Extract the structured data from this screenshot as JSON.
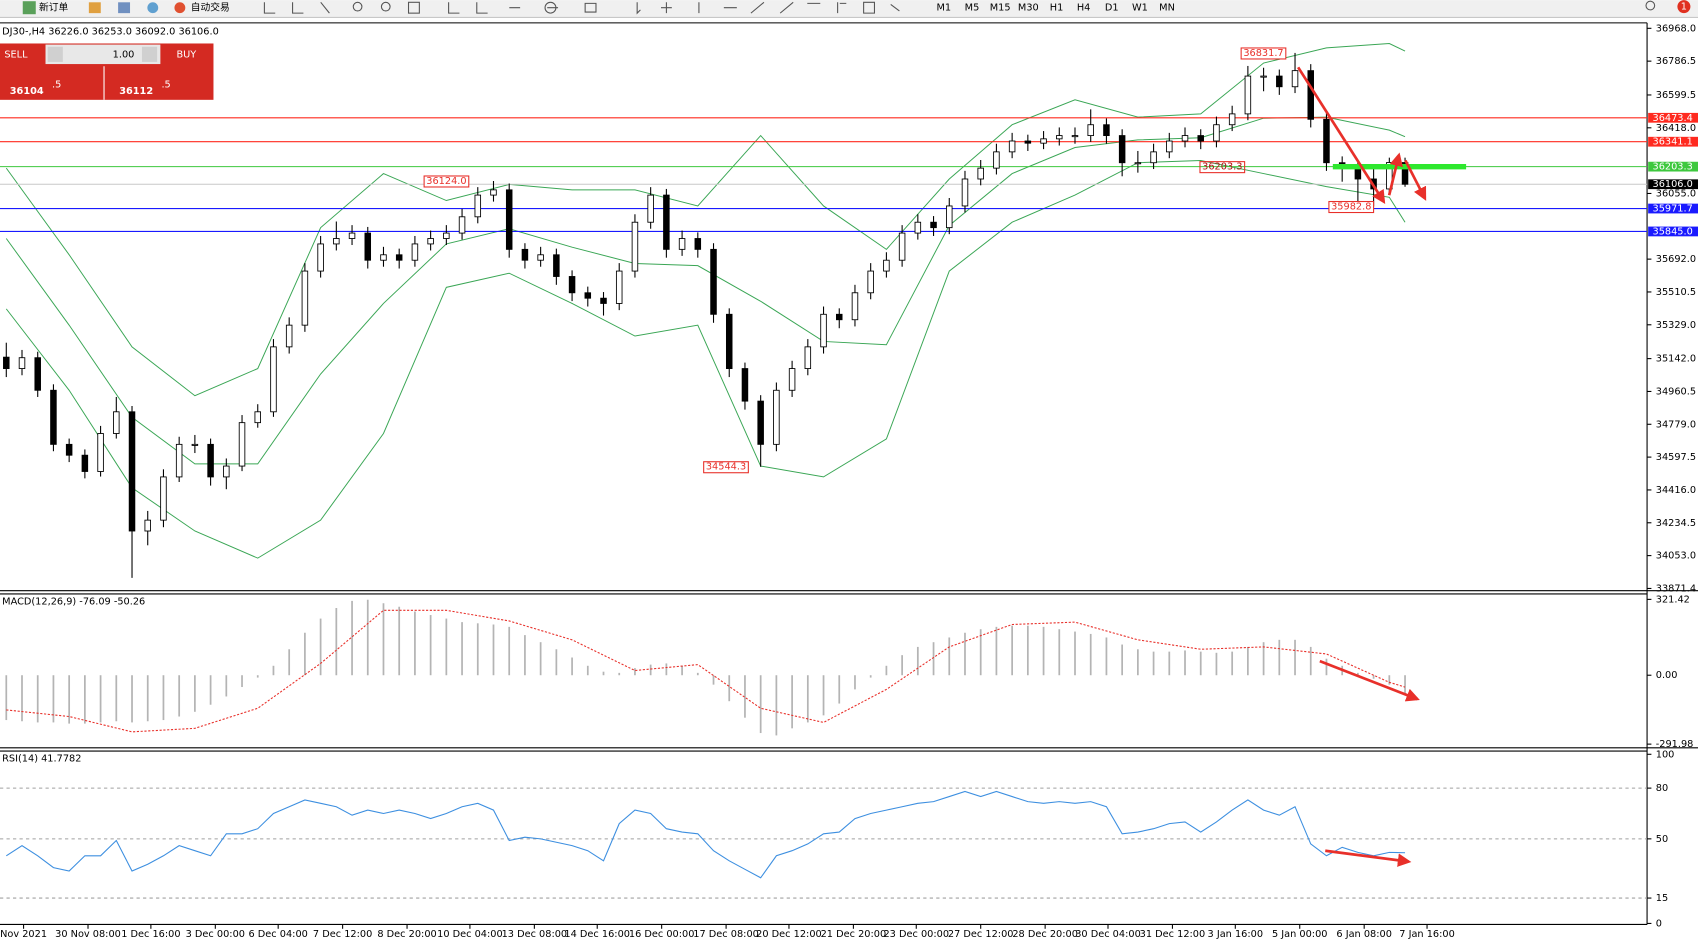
{
  "toolbar": {
    "new_order": "新订单",
    "auto_trading": "自动交易",
    "timeframes": [
      "M1",
      "M5",
      "M15",
      "M30",
      "H1",
      "H4",
      "D1",
      "W1",
      "MN"
    ],
    "notification_count": 1
  },
  "trade_panel": {
    "sell": "SELL",
    "buy": "BUY",
    "volume": "1.00",
    "bid_main": "36104",
    "bid_pips": ".5",
    "ask_main": "36112",
    "ask_pips": ".5"
  },
  "chart_data": [
    {
      "type": "candlestick",
      "title": "DJ30-,H4  36226.0 36253.0 36092.0 36106.0",
      "xlim": [
        -0.4,
        104.4
      ],
      "xticks": [
        {
          "value": 1.1,
          "label": "Nov 2021"
        },
        {
          "value": 5.2,
          "label": "30 Nov 08:00"
        },
        {
          "value": 9.2,
          "label": "1 Dec 16:00"
        },
        {
          "value": 13.3,
          "label": "3 Dec 00:00"
        },
        {
          "value": 17.3,
          "label": "6 Dec 04:00"
        },
        {
          "value": 21.4,
          "label": "7 Dec 12:00"
        },
        {
          "value": 25.5,
          "label": "8 Dec 20:00"
        },
        {
          "value": 29.5,
          "label": "10 Dec 04:00"
        },
        {
          "value": 33.6,
          "label": "13 Dec 08:00"
        },
        {
          "value": 37.6,
          "label": "14 Dec 16:00"
        },
        {
          "value": 41.7,
          "label": "16 Dec 00:00"
        },
        {
          "value": 45.8,
          "label": "17 Dec 08:00"
        },
        {
          "value": 49.8,
          "label": "20 Dec 12:00"
        },
        {
          "value": 53.9,
          "label": "21 Dec 20:00"
        },
        {
          "value": 57.9,
          "label": "23 Dec 00:00"
        },
        {
          "value": 62.0,
          "label": "27 Dec 12:00"
        },
        {
          "value": 66.1,
          "label": "28 Dec 20:00"
        },
        {
          "value": 70.1,
          "label": "30 Dec 04:00"
        },
        {
          "value": 74.2,
          "label": "31 Dec 12:00"
        },
        {
          "value": 78.2,
          "label": "3 Jan 16:00"
        },
        {
          "value": 82.3,
          "label": "5 Jan 00:00"
        },
        {
          "value": 86.4,
          "label": "6 Jan 08:00"
        },
        {
          "value": 90.4,
          "label": "7 Jan 16:00"
        }
      ],
      "ylim": [
        33859,
        36992
      ],
      "yticks": [
        {
          "value": 36968,
          "label": "36968.0"
        },
        36786.5,
        36599.5,
        {
          "value": 36418,
          "label": "36418.0"
        },
        {
          "value": 36055,
          "label": "36055.0"
        },
        {
          "value": 35692,
          "label": "35692.0"
        },
        35510.5,
        {
          "value": 35329,
          "label": "35329.0"
        },
        {
          "value": 35142,
          "label": "35142.0"
        },
        34960.5,
        {
          "value": 34779,
          "label": "34779.0"
        },
        34597.5,
        {
          "value": 34416,
          "label": "34416.0"
        },
        34234.5,
        {
          "value": 34053,
          "label": "34053.0"
        },
        33871.4
      ],
      "up_color": "#ffffff",
      "down_color": "#000000",
      "ohlc": [
        [
          35150,
          35230,
          35040,
          35087
        ],
        [
          35087,
          35190,
          35050,
          35147
        ],
        [
          35147,
          35180,
          34930,
          34967
        ],
        [
          34967,
          35000,
          34630,
          34668
        ],
        [
          34668,
          34700,
          34570,
          34608
        ],
        [
          34608,
          34640,
          34480,
          34518
        ],
        [
          34518,
          34770,
          34490,
          34728
        ],
        [
          34728,
          34930,
          34700,
          34848
        ],
        [
          34848,
          34880,
          33930,
          34189
        ],
        [
          34189,
          34300,
          34110,
          34249
        ],
        [
          34249,
          34530,
          34210,
          34488
        ],
        [
          34488,
          34710,
          34460,
          34668
        ],
        [
          34668,
          34720,
          34620,
          34668
        ],
        [
          34668,
          34700,
          34440,
          34488
        ],
        [
          34488,
          34590,
          34420,
          34548
        ],
        [
          34548,
          34830,
          34520,
          34788
        ],
        [
          34788,
          34890,
          34760,
          34848
        ],
        [
          34848,
          35250,
          34820,
          35207
        ],
        [
          35207,
          35370,
          35170,
          35327
        ],
        [
          35327,
          35670,
          35290,
          35626
        ],
        [
          35626,
          35820,
          35590,
          35776
        ],
        [
          35776,
          35900,
          35740,
          35806
        ],
        [
          35806,
          35880,
          35770,
          35836
        ],
        [
          35836,
          35870,
          35640,
          35686
        ],
        [
          35686,
          35760,
          35650,
          35716
        ],
        [
          35716,
          35750,
          35640,
          35686
        ],
        [
          35686,
          35820,
          35650,
          35776
        ],
        [
          35776,
          35850,
          35740,
          35806
        ],
        [
          35806,
          35880,
          35770,
          35836
        ],
        [
          35836,
          35970,
          35800,
          35926
        ],
        [
          35926,
          36090,
          35890,
          36046
        ],
        [
          36046,
          36124,
          36010,
          36075
        ],
        [
          36075,
          36110,
          35700,
          35746
        ],
        [
          35746,
          35780,
          35640,
          35686
        ],
        [
          35686,
          35760,
          35650,
          35716
        ],
        [
          35716,
          35750,
          35550,
          35596
        ],
        [
          35596,
          35630,
          35460,
          35506
        ],
        [
          35506,
          35540,
          35430,
          35476
        ],
        [
          35476,
          35510,
          35380,
          35447
        ],
        [
          35447,
          35670,
          35410,
          35626
        ],
        [
          35626,
          35940,
          35590,
          35896
        ],
        [
          35896,
          36090,
          35860,
          36046
        ],
        [
          36046,
          36080,
          35700,
          35746
        ],
        [
          35746,
          35850,
          35710,
          35806
        ],
        [
          35806,
          35840,
          35700,
          35746
        ],
        [
          35746,
          35780,
          35340,
          35387
        ],
        [
          35387,
          35420,
          35040,
          35087
        ],
        [
          35087,
          35120,
          34860,
          34907
        ],
        [
          34907,
          34940,
          34544,
          34668
        ],
        [
          34668,
          35010,
          34630,
          34967
        ],
        [
          34967,
          35130,
          34930,
          35087
        ],
        [
          35087,
          35250,
          35050,
          35207
        ],
        [
          35207,
          35430,
          35170,
          35387
        ],
        [
          35387,
          35420,
          35310,
          35357
        ],
        [
          35357,
          35550,
          35320,
          35506
        ],
        [
          35506,
          35670,
          35470,
          35626
        ],
        [
          35626,
          35730,
          35590,
          35686
        ],
        [
          35686,
          35880,
          35650,
          35836
        ],
        [
          35836,
          35940,
          35800,
          35896
        ],
        [
          35896,
          35930,
          35820,
          35866
        ],
        [
          35866,
          36030,
          35830,
          35986
        ],
        [
          35986,
          36180,
          35950,
          36135
        ],
        [
          36135,
          36240,
          36100,
          36195
        ],
        [
          36195,
          36330,
          36160,
          36285
        ],
        [
          36285,
          36390,
          36250,
          36345
        ],
        [
          36345,
          36380,
          36290,
          36333
        ],
        [
          36333,
          36400,
          36300,
          36357
        ],
        [
          36357,
          36420,
          36320,
          36375
        ],
        [
          36375,
          36420,
          36330,
          36375
        ],
        [
          36375,
          36520,
          36340,
          36435
        ],
        [
          36435,
          36470,
          36330,
          36375
        ],
        [
          36375,
          36410,
          36150,
          36225
        ],
        [
          36225,
          36290,
          36170,
          36225
        ],
        [
          36225,
          36330,
          36190,
          36285
        ],
        [
          36285,
          36390,
          36250,
          36345
        ],
        [
          36345,
          36420,
          36310,
          36375
        ],
        [
          36375,
          36410,
          36300,
          36345
        ],
        [
          36345,
          36480,
          36310,
          36435
        ],
        [
          36435,
          36540,
          36400,
          36495
        ],
        [
          36495,
          36760,
          36460,
          36704
        ],
        [
          36704,
          36750,
          36620,
          36704
        ],
        [
          36704,
          36740,
          36600,
          36645
        ],
        [
          36645,
          36832,
          36610,
          36734
        ],
        [
          36734,
          36770,
          36420,
          36465
        ],
        [
          36465,
          36500,
          36180,
          36225
        ],
        [
          36225,
          36260,
          36120,
          36195
        ],
        [
          36195,
          36230,
          36000,
          36135
        ],
        [
          36135,
          36200,
          35983,
          36080
        ],
        [
          36080,
          36253,
          36050,
          36226
        ],
        [
          36226,
          36253,
          36092,
          36106
        ]
      ],
      "bands": {
        "color": "#3aa655",
        "x": [
          0,
          4,
          8,
          12,
          16,
          20,
          24,
          28,
          32,
          36,
          40,
          44,
          48,
          52,
          56,
          60,
          64,
          68,
          72,
          76,
          80,
          84,
          88,
          89
        ],
        "upper": [
          36195,
          35716,
          35207,
          34937,
          35087,
          35866,
          36165,
          36016,
          36105,
          36075,
          36075,
          35986,
          36375,
          35986,
          35746,
          36135,
          36435,
          36573,
          36477,
          36495,
          36776,
          36860,
          36884,
          36842
        ],
        "middle": [
          35806,
          35327,
          34818,
          34560,
          34560,
          35057,
          35447,
          35776,
          35860,
          35758,
          35668,
          35656,
          35459,
          35237,
          35219,
          35878,
          36165,
          36309,
          36351,
          36363,
          36471,
          36477,
          36405,
          36369
        ],
        "lower": [
          35417,
          34967,
          34428,
          34189,
          34039,
          34249,
          34728,
          35536,
          35614,
          35447,
          35267,
          35327,
          34548,
          34488,
          34698,
          35626,
          35896,
          36046,
          36225,
          36237,
          36165,
          36093,
          36034,
          35896
        ]
      },
      "levels": [
        {
          "value": 36473.4,
          "label": "36473.4",
          "color": "#ff2a1f"
        },
        {
          "value": 36341.1,
          "label": "36341.1",
          "color": "#ff2a1f"
        },
        {
          "value": 36203.3,
          "label": "36203.3",
          "color": "#3ec83e"
        },
        {
          "value": 36106,
          "label": "36106.0",
          "color": "#000000",
          "line_color": "#c8c8c8"
        },
        {
          "value": 35971.7,
          "label": "35971.7",
          "color": "#1a1aff"
        },
        {
          "value": 35845,
          "label": "35845.0",
          "color": "#1a1aff"
        }
      ],
      "annotations": [
        {
          "value": 36831.7,
          "label": "36831.7"
        },
        {
          "value": 36124,
          "label": "36124.0"
        },
        {
          "value": 34544.3,
          "label": "34544.3"
        },
        {
          "value": 36203.3,
          "label": "36203.3"
        },
        {
          "value": 35982.8,
          "label": "35982.8"
        }
      ]
    },
    {
      "type": "macd",
      "title": "MACD(12,26,9) -76.09 -50.26",
      "ylim": [
        -307.6,
        344.4
      ],
      "yticks": [
        321.42,
        {
          "value": 0,
          "label": "0.00"
        },
        -291.98
      ],
      "hist_color": "#b4b4b4",
      "signal_color": "#e8302a",
      "histogram": [
        -190,
        -195,
        -200,
        -200,
        -205,
        -205,
        -200,
        -195,
        -200,
        -195,
        -190,
        -175,
        -155,
        -125,
        -90,
        -50,
        -10,
        40,
        110,
        180,
        240,
        285,
        315,
        320,
        305,
        290,
        270,
        255,
        240,
        225,
        220,
        215,
        205,
        170,
        140,
        110,
        75,
        40,
        15,
        10,
        30,
        45,
        50,
        40,
        10,
        -40,
        -110,
        -180,
        -245,
        -255,
        -225,
        -200,
        -170,
        -120,
        -60,
        -10,
        40,
        85,
        120,
        140,
        160,
        180,
        195,
        205,
        210,
        210,
        205,
        195,
        185,
        175,
        160,
        130,
        110,
        100,
        100,
        105,
        100,
        95,
        100,
        120,
        140,
        150,
        150,
        120,
        70,
        40,
        10,
        -15,
        -40,
        -76.09
      ],
      "signal": {
        "x": [
          0,
          4,
          8,
          12,
          16,
          20,
          24,
          28,
          32,
          36,
          40,
          44,
          48,
          52,
          56,
          60,
          64,
          68,
          72,
          76,
          80,
          84,
          88,
          89
        ],
        "values": [
          -147,
          -175,
          -240,
          -225,
          -140,
          50,
          275,
          275,
          230,
          150,
          20,
          45,
          -140,
          -200,
          -60,
          120,
          215,
          225,
          150,
          110,
          120,
          90,
          -30,
          -50.26
        ]
      }
    },
    {
      "type": "rsi",
      "title": "RSI(14) 41.7782",
      "ylim": [
        -0.6,
        101.9
      ],
      "yticks": [
        100,
        80,
        50,
        15,
        0
      ],
      "levels": [
        80,
        50,
        15
      ],
      "color": "#3d8fe0",
      "values": [
        40,
        46,
        40,
        33,
        31,
        40,
        40,
        49,
        31,
        35,
        40,
        46,
        43,
        40,
        53,
        53,
        56,
        65,
        69,
        73,
        71,
        69,
        64,
        67,
        65,
        67,
        65,
        62,
        65,
        69,
        71,
        67,
        49,
        51,
        50,
        48,
        46,
        43,
        37,
        59,
        67,
        65,
        56,
        54,
        53,
        43,
        37,
        32,
        27,
        40,
        43,
        47,
        53,
        54,
        62,
        65,
        67,
        69,
        71,
        72,
        75,
        78,
        75,
        78,
        75,
        72,
        71,
        72,
        71,
        72,
        69,
        53,
        54,
        56,
        59,
        60,
        54,
        60,
        67,
        73,
        67,
        64,
        69,
        47,
        40,
        45,
        42,
        40,
        42,
        41.7782
      ]
    }
  ]
}
